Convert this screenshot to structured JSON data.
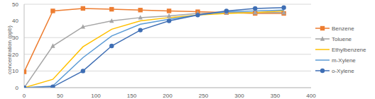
{
  "chart_data": {
    "type": "line",
    "y_label": "concentration (ppb)",
    "x": [
      0,
      40,
      82,
      122,
      162,
      202,
      242,
      282,
      322,
      362
    ],
    "xlim": [
      0,
      400
    ],
    "xticks": [
      0,
      50,
      100,
      150,
      200,
      250,
      300,
      350,
      400
    ],
    "ylim": [
      0,
      50
    ],
    "yticks": [
      0,
      10,
      20,
      30,
      40,
      50
    ],
    "grid": true,
    "legend": "right",
    "series": [
      {
        "name": "Benzene",
        "color": "#ed7d31",
        "marker": "square",
        "values": [
          9.5,
          46,
          47.5,
          47,
          46.5,
          46,
          45.5,
          45,
          44.5,
          44.5
        ]
      },
      {
        "name": "Toluene",
        "color": "#a5a5a5",
        "marker": "triangle",
        "values": [
          0,
          25,
          36.5,
          40,
          42,
          43,
          44.5,
          45,
          45,
          45
        ]
      },
      {
        "name": "Ethylbenzene",
        "color": "#ffc000",
        "marker": "none",
        "values": [
          0,
          5,
          24.5,
          35,
          40,
          42,
          43.5,
          44.5,
          45,
          46
        ]
      },
      {
        "name": "m-Xylene",
        "color": "#5b9bd5",
        "marker": "none",
        "values": [
          0,
          1,
          18,
          31,
          38,
          41,
          43.5,
          45.5,
          46,
          46.5
        ]
      },
      {
        "name": "o-Xylene",
        "color": "#3e6eb4",
        "marker": "circle",
        "values": [
          0,
          0.5,
          10,
          25,
          34.5,
          40,
          43.5,
          46,
          47.5,
          48
        ]
      }
    ]
  }
}
